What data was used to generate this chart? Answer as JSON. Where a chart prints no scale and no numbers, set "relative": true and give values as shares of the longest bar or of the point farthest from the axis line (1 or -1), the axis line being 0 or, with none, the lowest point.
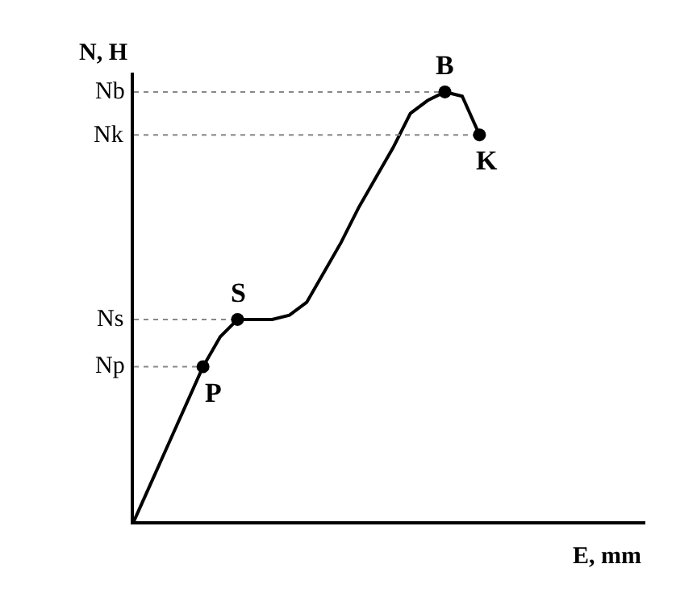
{
  "chart_data": {
    "type": "line",
    "relative": true,
    "xlabel": "E, mm",
    "ylabel": "N, H",
    "grid": false,
    "line_style": "solid",
    "categories": [
      null,
      null,
      null,
      null,
      null,
      null,
      null,
      null,
      null,
      null,
      null,
      null,
      null,
      null,
      null,
      null,
      null,
      null,
      null,
      null,
      null
    ],
    "series": [
      {
        "color": "#000000",
        "values": [
          0,
          0.09,
          0.18,
          0.27,
          0.36,
          0.43,
          0.47,
          0.47,
          0.47,
          0.48,
          0.51,
          0.58,
          0.65,
          0.73,
          0.8,
          0.87,
          0.95,
          0.98,
          1,
          0.99,
          0.9
        ]
      }
    ],
    "ref_lines": [
      {
        "axis": "y",
        "value": 1,
        "label": "Nb",
        "line_style": "dotted",
        "color": "#888888"
      },
      {
        "axis": "y",
        "value": 0.9,
        "label": "Nk",
        "line_style": "dotted",
        "color": "#888888"
      },
      {
        "axis": "y",
        "value": 0.47,
        "label": "Ns",
        "line_style": "dotted",
        "color": "#888888"
      },
      {
        "axis": "y",
        "value": 0.36,
        "label": "Np",
        "line_style": "dotted",
        "color": "#888888"
      }
    ],
    "annotations": [
      {
        "text": "P",
        "y": 0.36
      },
      {
        "text": "S",
        "y": 0.47
      },
      {
        "text": "B",
        "y": 1
      },
      {
        "text": "K",
        "y": 0.9
      }
    ]
  }
}
